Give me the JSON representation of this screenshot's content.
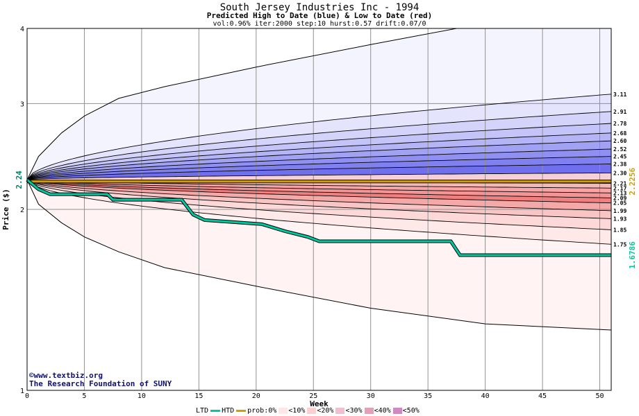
{
  "chart_data": {
    "type": "area",
    "title": "South Jersey Industries Inc - 1994",
    "subtitle": "Predicted High to Date (blue) &  Low to Date (red)",
    "params": "vol:0.96% iter:2000 step:10 hurst:0.57 drift:0.07/0",
    "xlabel": "Week",
    "ylabel": "Price ($)",
    "xlim": [
      0,
      51
    ],
    "ylim": [
      1,
      4
    ],
    "yscale": "log",
    "grid": true,
    "x_ticks": [
      0,
      5,
      10,
      15,
      20,
      25,
      30,
      35,
      40,
      45,
      50
    ],
    "y_ticks": [
      1,
      2,
      3,
      4
    ],
    "start_price": 2.24,
    "start_label": "2.24",
    "high_band_ends": [
      3.11,
      2.91,
      2.78,
      2.68,
      2.6,
      2.52,
      2.45,
      2.38,
      2.3
    ],
    "low_band_ends": [
      2.21,
      2.17,
      2.13,
      2.09,
      2.05,
      1.99,
      1.93,
      1.85,
      1.75
    ],
    "outer_high": {
      "x": [
        0,
        1,
        3,
        5,
        8,
        12,
        20,
        30,
        37.5,
        51
      ],
      "y": [
        2.24,
        2.45,
        2.68,
        2.86,
        3.06,
        3.2,
        3.45,
        3.76,
        4.0,
        4.0
      ]
    },
    "outer_low": {
      "x": [
        0,
        1,
        3,
        5,
        8,
        12,
        20,
        30,
        40,
        51
      ],
      "y": [
        2.24,
        2.04,
        1.9,
        1.8,
        1.7,
        1.6,
        1.49,
        1.37,
        1.29,
        1.26
      ]
    },
    "right_labels": [
      "3.11",
      "2.91",
      "2.78",
      "2.68",
      "2.60",
      "2.52",
      "2.45",
      "2.38",
      "2.30",
      "2.21",
      "2.17",
      "2.13",
      "2.09",
      "2.05",
      "1.99",
      "1.93",
      "1.85",
      "1.75"
    ],
    "series": [
      {
        "name": "HTD",
        "color": "#d0a000",
        "x": [
          0,
          51
        ],
        "y": [
          2.2256,
          2.2256
        ],
        "end_label": "2.2256"
      },
      {
        "name": "LTD",
        "color": "#00c8a0",
        "x": [
          0,
          1,
          2,
          7,
          7.5,
          13.5,
          14.5,
          15.5,
          20.5,
          22.5,
          24.5,
          25.5,
          37,
          37.8,
          51
        ],
        "y": [
          2.24,
          2.16,
          2.12,
          2.12,
          2.075,
          2.075,
          1.96,
          1.92,
          1.89,
          1.84,
          1.8,
          1.77,
          1.77,
          1.6786,
          1.6786
        ],
        "end_label": "1.6786"
      }
    ],
    "band_colors": {
      "high": [
        "#f4f4fe",
        "#e4e4fc",
        "#d4d4fa",
        "#c4c4f8",
        "#b4b4f6",
        "#a2a2f4",
        "#9090f2",
        "#8080f0",
        "#7070ee"
      ],
      "low": [
        "#f4b8b8",
        "#f8a4a4",
        "#f49494",
        "#f08080",
        "#f4a8a8",
        "#f8c4c4",
        "#fcd8d8",
        "#fee8e8",
        "#fff3f3"
      ]
    },
    "legend": {
      "ltd": "LTD",
      "htd": "HTD",
      "prob": "prob:0%",
      "items": [
        "<10%",
        "<20%",
        "<30%",
        "<40%",
        "<50%"
      ],
      "colors": [
        "#fde8e8",
        "#fad0d0",
        "#f0c0d0",
        "#e4a0b8",
        "#d088c0"
      ]
    }
  },
  "footer": {
    "line1": "©www.textbiz.org",
    "line2": "The Research Foundation of SUNY"
  }
}
